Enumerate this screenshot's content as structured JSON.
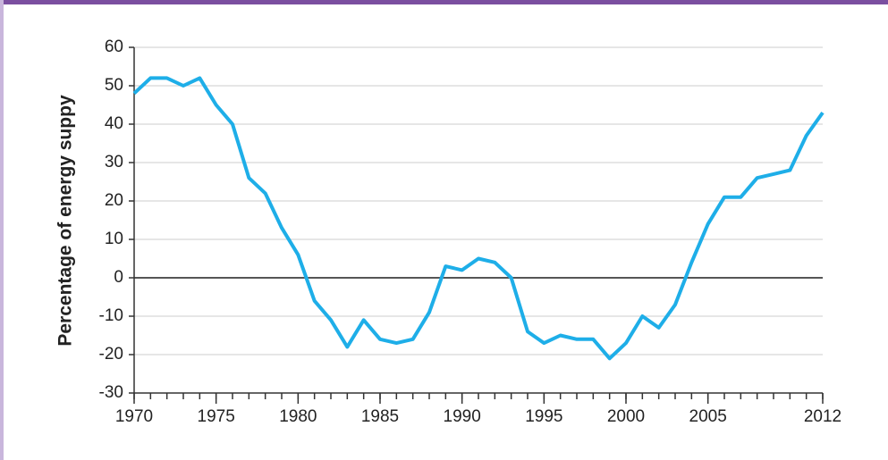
{
  "chart_data": {
    "type": "line",
    "ylabel": "Percentage of energy suppy",
    "x": [
      1970,
      1971,
      1972,
      1973,
      1974,
      1975,
      1976,
      1977,
      1978,
      1979,
      1980,
      1981,
      1982,
      1983,
      1984,
      1985,
      1986,
      1987,
      1988,
      1989,
      1990,
      1991,
      1992,
      1993,
      1994,
      1995,
      1996,
      1997,
      1998,
      1999,
      2000,
      2001,
      2002,
      2003,
      2004,
      2005,
      2006,
      2007,
      2008,
      2009,
      2010,
      2011,
      2012
    ],
    "values": [
      48,
      52,
      52,
      50,
      52,
      45,
      40,
      26,
      22,
      13,
      6,
      -6,
      -11,
      -18,
      -11,
      -16,
      -17,
      -16,
      -9,
      3,
      2,
      5,
      4,
      0,
      -14,
      -17,
      -15,
      -16,
      -16,
      -21,
      -17,
      -10,
      -13,
      -7,
      4,
      14,
      21,
      21,
      26,
      27,
      28,
      37,
      43
    ],
    "color": "#1eaee8",
    "xlim": [
      1970,
      2012
    ],
    "xticks": [
      1970,
      1975,
      1980,
      1985,
      1990,
      1995,
      2000,
      2005,
      2012
    ],
    "xminorticks": [
      1970,
      1971,
      1972,
      1973,
      1974,
      1975,
      1976,
      1977,
      1978,
      1979,
      1980,
      1981,
      1982,
      1983,
      1984,
      1985,
      1986,
      1987,
      1988,
      1989,
      1990,
      1991,
      1992,
      1993,
      1994,
      1995,
      1996,
      1997,
      1998,
      1999,
      2000,
      2001,
      2002,
      2003,
      2004,
      2005,
      2006,
      2007,
      2008,
      2009,
      2010,
      2011,
      2012
    ],
    "ylim": [
      -30,
      60
    ],
    "yticks": [
      -30,
      -20,
      -10,
      0,
      10,
      20,
      30,
      40,
      50,
      60
    ],
    "grid": true
  }
}
